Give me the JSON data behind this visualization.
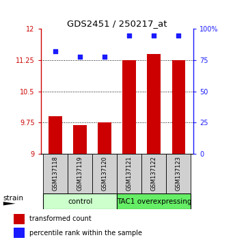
{
  "title": "GDS2451 / 250217_at",
  "categories": [
    "GSM137118",
    "GSM137119",
    "GSM137120",
    "GSM137121",
    "GSM137122",
    "GSM137123"
  ],
  "bar_values": [
    9.9,
    9.68,
    9.75,
    11.25,
    11.4,
    11.25
  ],
  "scatter_values": [
    82,
    78,
    78,
    95,
    95,
    95
  ],
  "ylim_left": [
    9,
    12
  ],
  "ylim_right": [
    0,
    100
  ],
  "yticks_left": [
    9,
    9.75,
    10.5,
    11.25,
    12
  ],
  "yticks_right": [
    0,
    25,
    50,
    75,
    100
  ],
  "bar_color": "#cc0000",
  "scatter_color": "#1a1aff",
  "group1_label": "control",
  "group2_label": "TAC1 overexpressing",
  "group1_indices": [
    0,
    1,
    2
  ],
  "group2_indices": [
    3,
    4,
    5
  ],
  "group1_color": "#ccffcc",
  "group2_color": "#66ee66",
  "strain_label": "strain",
  "legend_bar_label": "transformed count",
  "legend_scatter_label": "percentile rank within the sample",
  "title_fontsize": 9.5,
  "tick_fontsize": 7,
  "bar_width": 0.55,
  "yaxis_left_color": "#cc0000",
  "yaxis_right_color": "#1a1aff"
}
